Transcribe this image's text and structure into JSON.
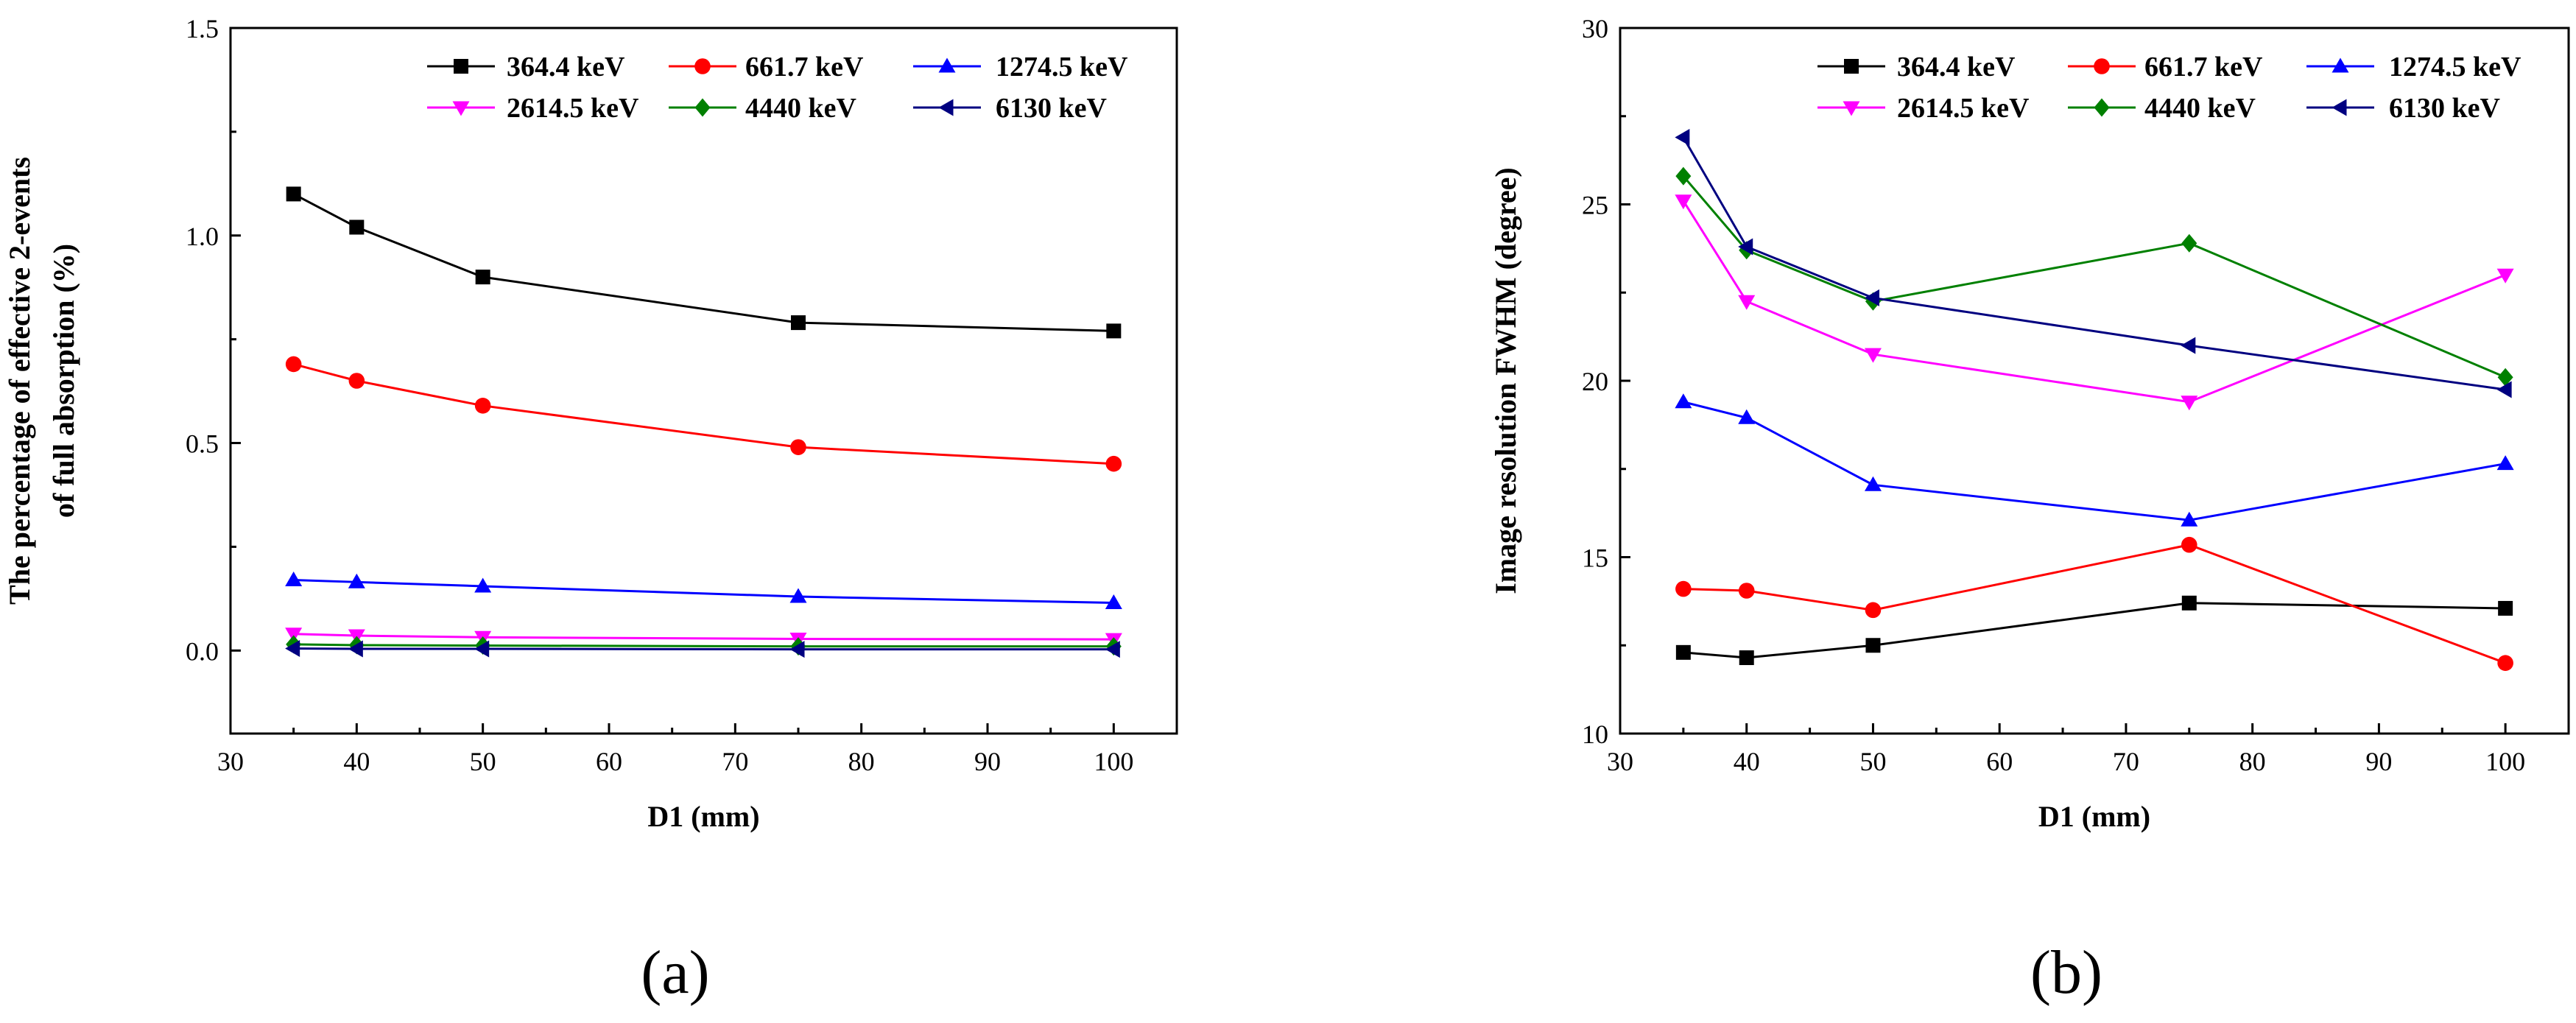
{
  "chart_data": [
    {
      "type": "line",
      "panel_label": "(a)",
      "xlabel": "D1 (mm)",
      "ylabel_lines": [
        "The percentage of effective 2-events",
        "of full absorption (%)"
      ],
      "xlim": [
        30,
        105
      ],
      "ylim": [
        -0.2,
        1.5
      ],
      "xticks": [
        30,
        40,
        50,
        60,
        70,
        80,
        90,
        100
      ],
      "yticks": [
        0.0,
        0.5,
        1.0,
        1.5
      ],
      "ytick_labels": [
        "0.0",
        "0.5",
        "1.0",
        "1.5"
      ],
      "legend_position": "top-right",
      "x": [
        35,
        40,
        50,
        75,
        100
      ],
      "series": [
        {
          "name": "364.4 keV",
          "color": "#000000",
          "marker": "square",
          "values": [
            1.1,
            1.02,
            0.9,
            0.79,
            0.77
          ]
        },
        {
          "name": "661.7 keV",
          "color": "#ff0000",
          "marker": "circle",
          "values": [
            0.69,
            0.65,
            0.59,
            0.49,
            0.45
          ]
        },
        {
          "name": "1274.5 keV",
          "color": "#0000ff",
          "marker": "triangle-up",
          "values": [
            0.17,
            0.165,
            0.155,
            0.13,
            0.115
          ]
        },
        {
          "name": "2614.5 keV",
          "color": "#ff00ff",
          "marker": "triangle-down",
          "values": [
            0.04,
            0.036,
            0.032,
            0.028,
            0.027
          ]
        },
        {
          "name": "4440 keV",
          "color": "#008000",
          "marker": "diamond",
          "values": [
            0.015,
            0.013,
            0.012,
            0.01,
            0.01
          ]
        },
        {
          "name": "6130 keV",
          "color": "#000080",
          "marker": "triangle-left",
          "values": [
            0.005,
            0.004,
            0.004,
            0.003,
            0.003
          ]
        }
      ]
    },
    {
      "type": "line",
      "panel_label": "(b)",
      "xlabel": "D1 (mm)",
      "ylabel_lines": [
        "Image resolution FWHM (degree)"
      ],
      "xlim": [
        30,
        105
      ],
      "ylim": [
        10,
        30
      ],
      "xticks": [
        30,
        40,
        50,
        60,
        70,
        80,
        90,
        100
      ],
      "yticks": [
        10,
        15,
        20,
        25,
        30
      ],
      "ytick_labels": [
        "10",
        "15",
        "20",
        "25",
        "30"
      ],
      "legend_position": "top-right",
      "x": [
        35,
        40,
        50,
        75,
        100
      ],
      "series": [
        {
          "name": "364.4 keV",
          "color": "#000000",
          "marker": "square",
          "values": [
            12.3,
            12.15,
            12.5,
            13.7,
            13.55
          ]
        },
        {
          "name": "661.7 keV",
          "color": "#ff0000",
          "marker": "circle",
          "values": [
            14.1,
            14.05,
            13.5,
            15.35,
            12.0
          ]
        },
        {
          "name": "1274.5 keV",
          "color": "#0000ff",
          "marker": "triangle-up",
          "values": [
            19.4,
            18.95,
            17.05,
            16.05,
            17.65
          ]
        },
        {
          "name": "2614.5 keV",
          "color": "#ff00ff",
          "marker": "triangle-down",
          "values": [
            25.1,
            22.25,
            20.75,
            19.4,
            23.0
          ]
        },
        {
          "name": "4440 keV",
          "color": "#008000",
          "marker": "diamond",
          "values": [
            25.8,
            23.7,
            22.25,
            23.9,
            20.1
          ]
        },
        {
          "name": "6130 keV",
          "color": "#000080",
          "marker": "triangle-left",
          "values": [
            26.9,
            23.8,
            22.35,
            21.0,
            19.75
          ]
        }
      ]
    }
  ]
}
